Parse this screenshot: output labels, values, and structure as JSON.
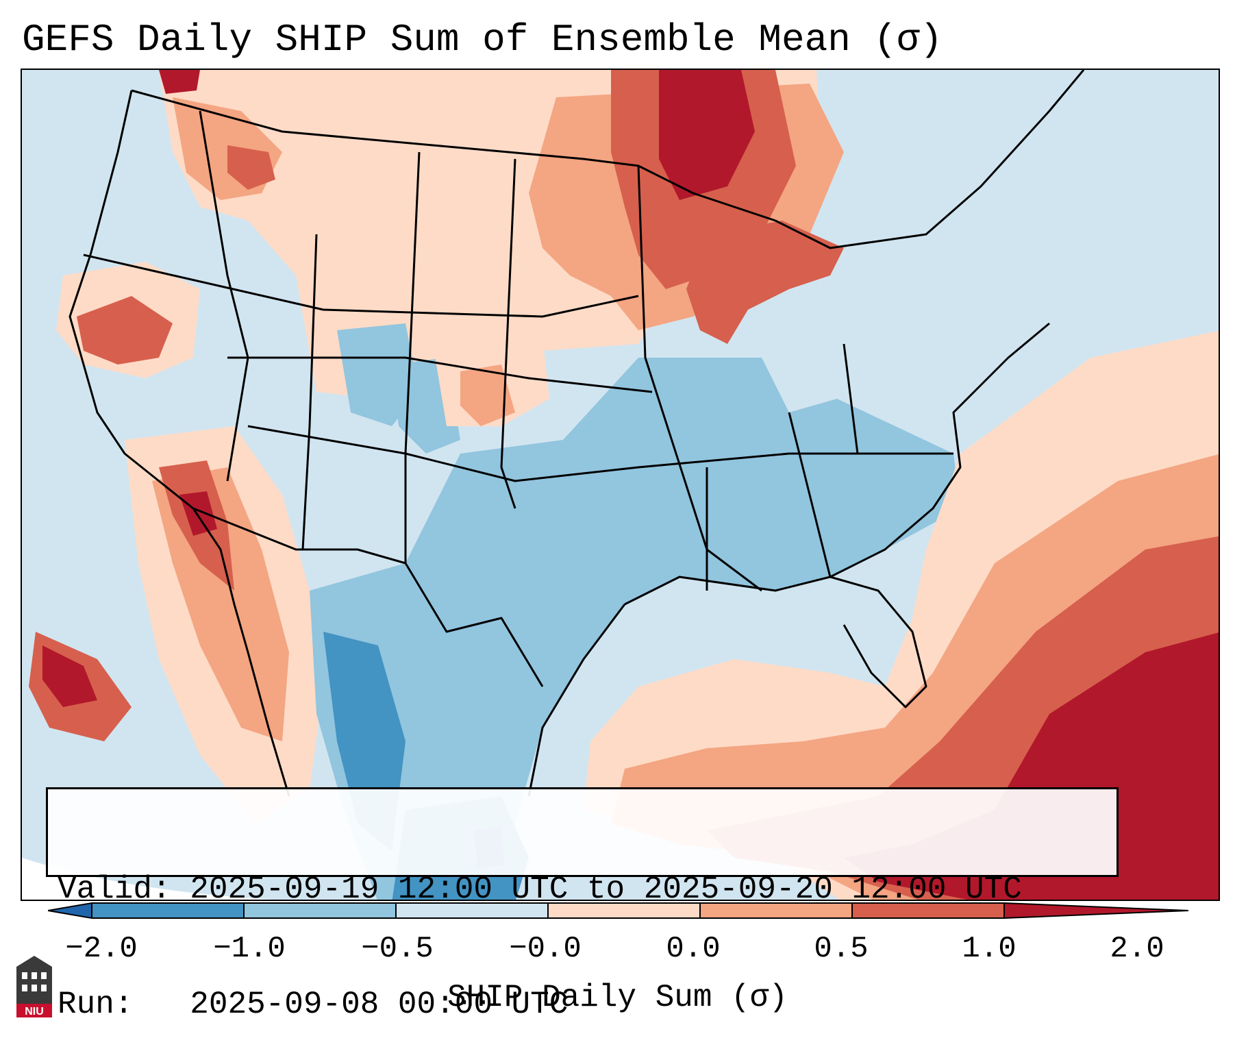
{
  "title": "GEFS Daily SHIP Sum of Ensemble Mean (σ)",
  "info": {
    "valid_label": "Valid:",
    "valid_value": "2025-09-19 12:00 UTC to 2025-09-20 12:00 UTC",
    "run_label": "Run:",
    "run_value": "2025-09-08 00:00 UTC"
  },
  "colorbar": {
    "label": "SHIP Daily Sum (σ)",
    "ticks": [
      "−2.0",
      "−1.0",
      "−0.5",
      "−0.0",
      "0.0",
      "0.5",
      "1.0",
      "2.0"
    ],
    "colors": [
      "#2166ac",
      "#4393c3",
      "#92c5de",
      "#d1e5f0",
      "#fddbc7",
      "#f4a582",
      "#d6604d",
      "#b2182b"
    ]
  },
  "map": {
    "region": "Contiguous United States",
    "palette": {
      "very_low": "#4393c3",
      "low": "#92c5de",
      "near_neg": "#d1e5f0",
      "near_pos": "#fddbc7",
      "high": "#f4a582",
      "higher": "#d6604d",
      "very_high": "#b2182b"
    }
  },
  "logo": {
    "text": "NIU",
    "icon": "castle-tower-icon"
  }
}
